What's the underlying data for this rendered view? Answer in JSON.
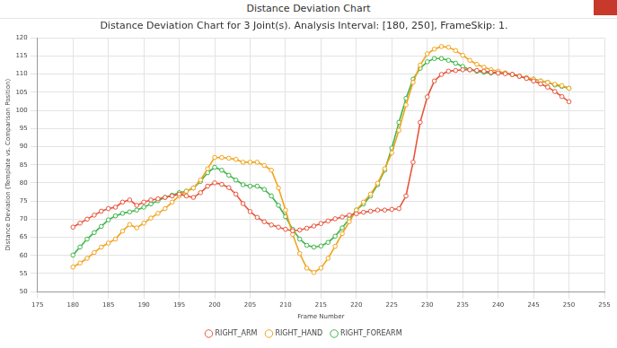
{
  "window_title": "Distance Deviation Chart",
  "chart_data": {
    "type": "line",
    "title": "Distance Deviation Chart for 3 Joint(s). Analysis Interval: [180, 250], FrameSkip: 1.",
    "x_label": "Frame Number",
    "y_label": "Distance Deviation (Template vs. Comparison Position)",
    "x": [
      180,
      181,
      182,
      183,
      184,
      185,
      186,
      187,
      188,
      189,
      190,
      191,
      192,
      193,
      194,
      195,
      196,
      197,
      198,
      199,
      200,
      201,
      202,
      203,
      204,
      205,
      206,
      207,
      208,
      209,
      210,
      211,
      212,
      213,
      214,
      215,
      216,
      217,
      218,
      219,
      220,
      221,
      222,
      223,
      224,
      225,
      226,
      227,
      228,
      229,
      230,
      231,
      232,
      233,
      234,
      235,
      236,
      237,
      238,
      239,
      240,
      241,
      242,
      243,
      244,
      245,
      246,
      247,
      248,
      249,
      250
    ],
    "series": [
      {
        "name": "RIGHT_ARM",
        "color": "#e8553b",
        "marker": "circle",
        "line_style": "solid",
        "values": [
          67.8,
          68.9,
          70,
          71.1,
          72.2,
          72.9,
          73.3,
          74.7,
          75.3,
          73.8,
          74.7,
          75.3,
          75.6,
          76,
          76.4,
          76.9,
          76.4,
          76,
          77.3,
          79.1,
          80,
          79.6,
          78.7,
          76.9,
          74.3,
          72.1,
          70.5,
          69.3,
          68.4,
          67.8,
          67.2,
          66.8,
          67,
          67.5,
          68.1,
          68.8,
          69.5,
          70.1,
          70.6,
          71.1,
          71.5,
          71.9,
          72.2,
          72.5,
          72.5,
          72.7,
          72.9,
          76.4,
          85.7,
          96.7,
          103.7,
          108.1,
          109.9,
          110.8,
          111,
          111.2,
          111.2,
          111,
          110.8,
          110.5,
          110.3,
          110.1,
          109.9,
          109.4,
          108.8,
          108.1,
          107.3,
          106.4,
          105.2,
          103.8,
          102.4
        ]
      },
      {
        "name": "RIGHT_HAND",
        "color": "#f2a31b",
        "marker": "circle",
        "line_style": "solid",
        "values": [
          56.8,
          57.9,
          59.2,
          60.8,
          62.3,
          63.4,
          64.5,
          66.7,
          68.5,
          67.6,
          68.9,
          70.3,
          71.6,
          72.9,
          74.7,
          76.4,
          77.7,
          78.6,
          80.8,
          83.9,
          87,
          87,
          86.8,
          86.5,
          85.7,
          85.7,
          85.7,
          84.8,
          83.5,
          78.6,
          72.5,
          65.8,
          60.5,
          56.5,
          55.3,
          56.5,
          59.2,
          62.5,
          66,
          69.3,
          72.5,
          74.7,
          76.9,
          79.9,
          83.9,
          88.3,
          94.5,
          101.5,
          107.7,
          112.5,
          115.6,
          116.9,
          117.6,
          117.4,
          116.5,
          115.2,
          113.8,
          112.7,
          111.9,
          111.2,
          110.8,
          110.3,
          109.9,
          109.4,
          109,
          108.6,
          108.1,
          107.7,
          107.2,
          106.8,
          106.1
        ]
      },
      {
        "name": "RIGHT_FOREARM",
        "color": "#3db548",
        "marker": "circle",
        "line_style": "solid",
        "values": [
          60.1,
          62.3,
          64.5,
          66.3,
          68,
          69.8,
          70.9,
          71.6,
          72,
          72.5,
          73.3,
          74.2,
          75.1,
          76,
          76.6,
          77.3,
          77.7,
          78.6,
          80.4,
          82.8,
          84.3,
          83.5,
          82.1,
          80.8,
          79.5,
          79.1,
          79.1,
          78.2,
          76.4,
          73.8,
          70.7,
          67.2,
          64.5,
          62.8,
          62.3,
          62.6,
          63.6,
          65.3,
          67.6,
          70.1,
          72.5,
          74.2,
          76.4,
          79.5,
          83.5,
          89.6,
          96.7,
          103.3,
          108.6,
          111.6,
          113.4,
          114.3,
          114.3,
          113.8,
          113,
          112.1,
          111.2,
          110.8,
          110.5,
          110.3,
          110.3,
          110.3,
          109.9,
          109.4,
          109,
          108.6,
          108.1,
          107.7,
          107,
          106.6,
          106.1
        ]
      }
    ],
    "xlim": [
      175,
      255
    ],
    "xticks": [
      175,
      180,
      185,
      190,
      195,
      200,
      205,
      210,
      215,
      220,
      225,
      230,
      235,
      240,
      245,
      250,
      255
    ],
    "ylim": [
      50,
      120
    ],
    "yticks": [
      50,
      55,
      60,
      65,
      70,
      75,
      80,
      85,
      90,
      95,
      100,
      105,
      110,
      115,
      120
    ],
    "grid": true,
    "legend": "bottom"
  }
}
